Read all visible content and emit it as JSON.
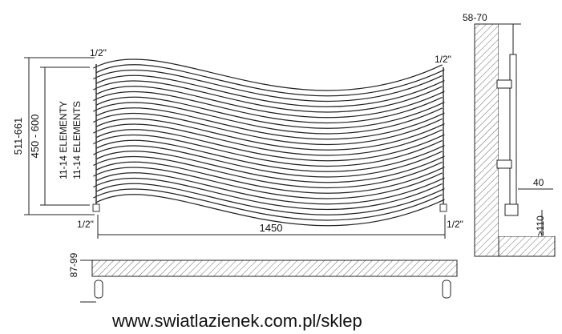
{
  "front_view": {
    "connection_labels": [
      "1/2\"",
      "1/2\"",
      "1/2\"",
      "1/2\""
    ],
    "height_total": "511-661",
    "height_spacing": "450 - 600",
    "elements_pl": "11-14 ELEMENTY",
    "elements_en": "11-14 ELEMENTS",
    "width": "1450"
  },
  "side_view": {
    "wall_distance": "58-70",
    "pipe_offset": "40",
    "floor_clearance": "≥110"
  },
  "top_view": {
    "depth": "87-99"
  },
  "footer": {
    "url": "www.swiatlazienek.com.pl/sklep"
  }
}
